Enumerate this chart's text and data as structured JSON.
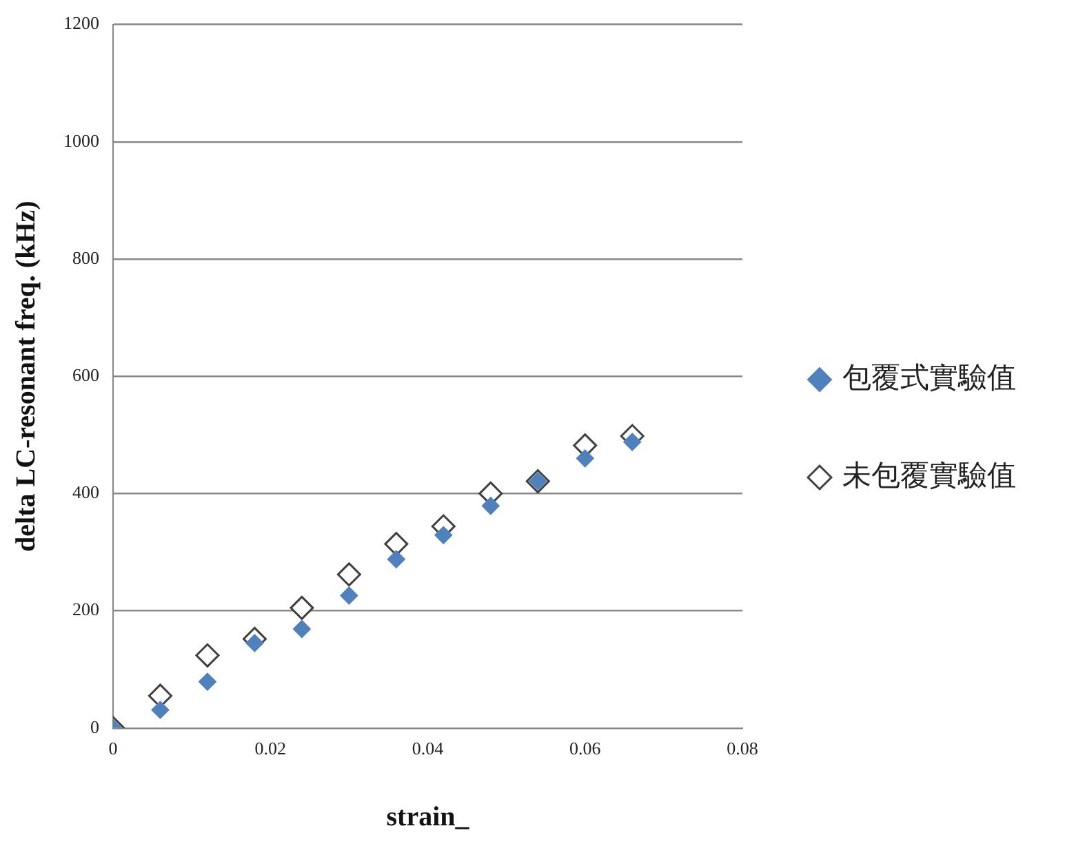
{
  "chart_data": {
    "type": "scatter",
    "xlabel": "strain_",
    "ylabel": "delta LC-resonant freq. (kHz)",
    "x": [
      0,
      0.006,
      0.012,
      0.018,
      0.024,
      0.03,
      0.036,
      0.042,
      0.048,
      0.054,
      0.06,
      0.066
    ],
    "series": [
      {
        "name": "包覆式實驗值",
        "color": "#4f81bd",
        "values": [
          0,
          31,
          79,
          145,
          169,
          226,
          288,
          329,
          379,
          421,
          460,
          488
        ]
      },
      {
        "name": "未包覆實驗值",
        "color": "#ffffff",
        "values": [
          0,
          55,
          124,
          152,
          205,
          262,
          314,
          344,
          400,
          421,
          482,
          498
        ]
      }
    ],
    "xlim": [
      0,
      0.08
    ],
    "xticks": [
      0,
      0.02,
      0.04,
      0.06,
      0.08
    ],
    "ylim": [
      0,
      1200
    ],
    "yticks": [
      0,
      200,
      400,
      600,
      800,
      1000,
      1200
    ],
    "grid": "y",
    "legend": "right",
    "marker": "diamond"
  }
}
